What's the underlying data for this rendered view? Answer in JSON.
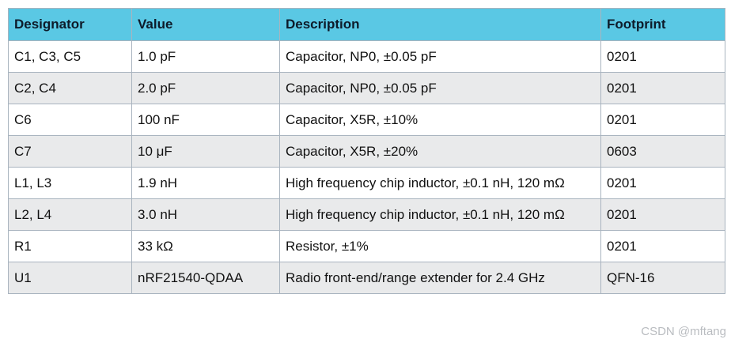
{
  "table": {
    "headers": [
      "Designator",
      "Value",
      "Description",
      "Footprint"
    ],
    "rows": [
      [
        "C1, C3, C5",
        "1.0 pF",
        "Capacitor, NP0, ±0.05 pF",
        "0201"
      ],
      [
        "C2, C4",
        "2.0 pF",
        "Capacitor, NP0, ±0.05 pF",
        "0201"
      ],
      [
        "C6",
        "100 nF",
        "Capacitor, X5R, ±10%",
        "0201"
      ],
      [
        "C7",
        "10 μF",
        "Capacitor, X5R, ±20%",
        "0603"
      ],
      [
        "L1, L3",
        "1.9 nH",
        "High frequency chip inductor, ±0.1 nH, 120 mΩ",
        "0201"
      ],
      [
        "L2, L4",
        "3.0 nH",
        "High frequency chip inductor, ±0.1 nH, 120 mΩ",
        "0201"
      ],
      [
        "R1",
        "33 kΩ",
        "Resistor, ±1%",
        "0201"
      ],
      [
        "U1",
        "nRF21540-QDAA",
        "Radio front-end/range extender for 2.4 GHz",
        "QFN-16"
      ]
    ]
  },
  "watermark": "CSDN @mftang",
  "colors": {
    "header_bg": "#5ac8e4",
    "stripe_bg": "#e9eaeb",
    "border": "#a9b4bf"
  }
}
